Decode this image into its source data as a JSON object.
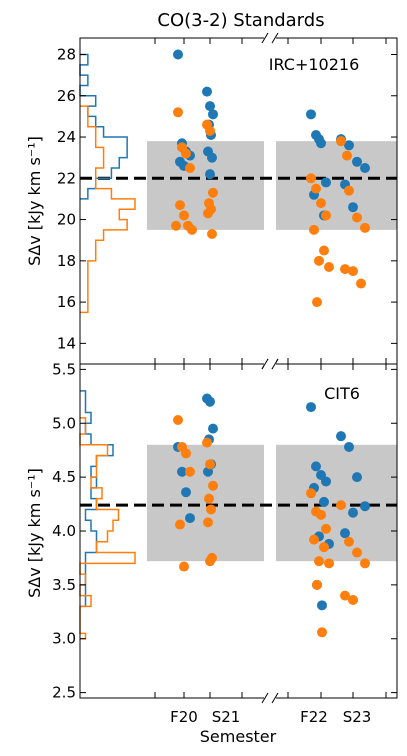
{
  "figure": {
    "title": "CO(3-2) Standards",
    "xlabel": "Semester",
    "xtick_labels": [
      "F20",
      "S21",
      "F22",
      "S23"
    ]
  },
  "chart_data": [
    {
      "type": "scatter",
      "annotation": "IRC+10216",
      "ylabel": "SΔv [kJy km s⁻¹]",
      "ylim": [
        13,
        28.8
      ],
      "yticks": [
        14,
        16,
        18,
        20,
        22,
        24,
        26,
        28
      ],
      "ytick_labels": [
        "14",
        "16",
        "18",
        "20",
        "22",
        "24",
        "26",
        "28"
      ],
      "mean": 22.0,
      "band": [
        19.5,
        23.8
      ],
      "series": [
        {
          "color": "#1f77b4",
          "points": [
            {
              "x": "F20",
              "y": 28.0
            },
            {
              "x": "F20",
              "y": 23.7
            },
            {
              "x": "F20",
              "y": 23.3
            },
            {
              "x": "F20",
              "y": 23.1
            },
            {
              "x": "F20",
              "y": 22.8
            },
            {
              "x": "F20",
              "y": 22.6
            },
            {
              "x": "S21",
              "y": 26.2
            },
            {
              "x": "S21",
              "y": 25.5
            },
            {
              "x": "S21",
              "y": 25.1
            },
            {
              "x": "S21",
              "y": 24.6
            },
            {
              "x": "S21",
              "y": 24.1
            },
            {
              "x": "S21",
              "y": 23.3
            },
            {
              "x": "S21",
              "y": 23.0
            },
            {
              "x": "S21",
              "y": 22.2
            },
            {
              "x": "F22",
              "y": 25.1
            },
            {
              "x": "F22",
              "y": 24.1
            },
            {
              "x": "F22",
              "y": 23.7
            },
            {
              "x": "F22",
              "y": 21.8
            },
            {
              "x": "F22",
              "y": 21.2
            },
            {
              "x": "F22",
              "y": 20.2
            },
            {
              "x": "F22",
              "y": 23.9
            },
            {
              "x": "S23",
              "y": 23.9
            },
            {
              "x": "S23",
              "y": 23.6
            },
            {
              "x": "S23",
              "y": 22.8
            },
            {
              "x": "S23",
              "y": 22.5
            },
            {
              "x": "S23",
              "y": 21.7
            },
            {
              "x": "S23",
              "y": 20.6
            }
          ]
        },
        {
          "color": "#ff7f0e",
          "points": [
            {
              "x": "F20",
              "y": 25.2
            },
            {
              "x": "F20",
              "y": 23.5
            },
            {
              "x": "F20",
              "y": 23.2
            },
            {
              "x": "F20",
              "y": 22.5
            },
            {
              "x": "F20",
              "y": 20.7
            },
            {
              "x": "F20",
              "y": 20.2
            },
            {
              "x": "F20",
              "y": 19.7
            },
            {
              "x": "F20",
              "y": 19.7
            },
            {
              "x": "F20",
              "y": 19.5
            },
            {
              "x": "S21",
              "y": 24.6
            },
            {
              "x": "S21",
              "y": 24.3
            },
            {
              "x": "S21",
              "y": 21.3
            },
            {
              "x": "S21",
              "y": 20.8
            },
            {
              "x": "S21",
              "y": 20.5
            },
            {
              "x": "S21",
              "y": 20.3
            },
            {
              "x": "S21",
              "y": 19.3
            },
            {
              "x": "F22",
              "y": 22.0
            },
            {
              "x": "F22",
              "y": 21.5
            },
            {
              "x": "F22",
              "y": 20.8
            },
            {
              "x": "F22",
              "y": 20.2
            },
            {
              "x": "F22",
              "y": 19.5
            },
            {
              "x": "F22",
              "y": 18.5
            },
            {
              "x": "F22",
              "y": 18.0
            },
            {
              "x": "F22",
              "y": 17.7
            },
            {
              "x": "F22",
              "y": 16.0
            },
            {
              "x": "S23",
              "y": 23.8
            },
            {
              "x": "S23",
              "y": 21.4
            },
            {
              "x": "S23",
              "y": 20.1
            },
            {
              "x": "S23",
              "y": 19.6
            },
            {
              "x": "S23",
              "y": 17.6
            },
            {
              "x": "S23",
              "y": 17.5
            },
            {
              "x": "S23",
              "y": 16.9
            },
            {
              "x": "S23",
              "y": 23.1
            }
          ]
        }
      ]
    },
    {
      "type": "scatter",
      "annotation": "CIT6",
      "ylabel": "SΔv [kJy km s⁻¹]",
      "ylim": [
        2.45,
        5.55
      ],
      "yticks": [
        2.5,
        3.0,
        3.5,
        4.0,
        4.5,
        5.0,
        5.5
      ],
      "ytick_labels": [
        "2.5",
        "3.0",
        "3.5",
        "4.0",
        "4.5",
        "5.0",
        "5.5"
      ],
      "mean": 4.24,
      "band": [
        3.72,
        4.8
      ],
      "series": [
        {
          "color": "#1f77b4",
          "points": [
            {
              "x": "F20",
              "y": 4.78
            },
            {
              "x": "F20",
              "y": 4.55
            },
            {
              "x": "F20",
              "y": 4.36
            },
            {
              "x": "F20",
              "y": 4.12
            },
            {
              "x": "S21",
              "y": 5.23
            },
            {
              "x": "S21",
              "y": 5.2
            },
            {
              "x": "S21",
              "y": 4.95
            },
            {
              "x": "S21",
              "y": 4.85
            },
            {
              "x": "S21",
              "y": 4.62
            },
            {
              "x": "S21",
              "y": 4.55
            },
            {
              "x": "F22",
              "y": 5.15
            },
            {
              "x": "F22",
              "y": 4.6
            },
            {
              "x": "F22",
              "y": 4.52
            },
            {
              "x": "F22",
              "y": 4.46
            },
            {
              "x": "F22",
              "y": 4.4
            },
            {
              "x": "F22",
              "y": 4.27
            },
            {
              "x": "F22",
              "y": 3.95
            },
            {
              "x": "F22",
              "y": 3.88
            },
            {
              "x": "F22",
              "y": 3.5
            },
            {
              "x": "F22",
              "y": 3.31
            },
            {
              "x": "S23",
              "y": 4.88
            },
            {
              "x": "S23",
              "y": 4.78
            },
            {
              "x": "S23",
              "y": 4.5
            },
            {
              "x": "S23",
              "y": 4.23
            },
            {
              "x": "S23",
              "y": 3.98
            },
            {
              "x": "S23",
              "y": 4.17
            }
          ]
        },
        {
          "color": "#ff7f0e",
          "points": [
            {
              "x": "F20",
              "y": 5.03
            },
            {
              "x": "F20",
              "y": 4.78
            },
            {
              "x": "F20",
              "y": 4.72
            },
            {
              "x": "F20",
              "y": 4.55
            },
            {
              "x": "F20",
              "y": 4.06
            },
            {
              "x": "F20",
              "y": 3.67
            },
            {
              "x": "S21",
              "y": 4.82
            },
            {
              "x": "S21",
              "y": 4.62
            },
            {
              "x": "S21",
              "y": 4.42
            },
            {
              "x": "S21",
              "y": 4.3
            },
            {
              "x": "S21",
              "y": 4.2
            },
            {
              "x": "S21",
              "y": 4.08
            },
            {
              "x": "S21",
              "y": 3.75
            },
            {
              "x": "S21",
              "y": 3.72
            },
            {
              "x": "F22",
              "y": 4.35
            },
            {
              "x": "F22",
              "y": 4.18
            },
            {
              "x": "F22",
              "y": 4.15
            },
            {
              "x": "F22",
              "y": 4.02
            },
            {
              "x": "F22",
              "y": 3.92
            },
            {
              "x": "F22",
              "y": 3.85
            },
            {
              "x": "F22",
              "y": 3.72
            },
            {
              "x": "F22",
              "y": 3.7
            },
            {
              "x": "F22",
              "y": 3.5
            },
            {
              "x": "F22",
              "y": 3.06
            },
            {
              "x": "S23",
              "y": 4.24
            },
            {
              "x": "S23",
              "y": 3.9
            },
            {
              "x": "S23",
              "y": 3.8
            },
            {
              "x": "S23",
              "y": 3.7
            },
            {
              "x": "S23",
              "y": 3.4
            },
            {
              "x": "S23",
              "y": 3.36
            }
          ]
        }
      ]
    }
  ],
  "histograms": [
    {
      "panel": 0,
      "series": [
        {
          "color": "#1f77b4",
          "edges": [
            21.0,
            21.5,
            22.0,
            22.5,
            23.0,
            23.5,
            24.0,
            24.5,
            25.0,
            25.5,
            26.0,
            26.5,
            27.0,
            27.5,
            28.0
          ],
          "counts": [
            1,
            2,
            4,
            5,
            6,
            6,
            3,
            2,
            1,
            2,
            0,
            1,
            0,
            1
          ]
        },
        {
          "color": "#ff7f0e",
          "edges": [
            15.5,
            16.0,
            16.5,
            17.0,
            17.5,
            18.0,
            18.5,
            19.0,
            19.5,
            20.0,
            20.5,
            21.0,
            21.5,
            22.0,
            22.5,
            23.0,
            23.5,
            24.0,
            24.5,
            25.0,
            25.5
          ],
          "counts": [
            1,
            1,
            1,
            1,
            1,
            2,
            2,
            3,
            6,
            5,
            7,
            4,
            2,
            2,
            3,
            3,
            2,
            2,
            1,
            1
          ]
        }
      ]
    },
    {
      "panel": 1,
      "series": [
        {
          "color": "#1f77b4",
          "edges": [
            3.3,
            3.4,
            3.5,
            3.6,
            3.7,
            3.8,
            3.9,
            4.0,
            4.1,
            4.2,
            4.3,
            4.4,
            4.5,
            4.6,
            4.7,
            4.8,
            4.9,
            5.0,
            5.1,
            5.2,
            5.3
          ],
          "counts": [
            1,
            1,
            1,
            1,
            1,
            3,
            3,
            2,
            1,
            3,
            2,
            3,
            2,
            3,
            6,
            2,
            1,
            2,
            1,
            1
          ]
        },
        {
          "color": "#ff7f0e",
          "edges": [
            3.0,
            3.05,
            3.3,
            3.4,
            3.5,
            3.6,
            3.7,
            3.8,
            3.9,
            4.0,
            4.1,
            4.2,
            4.3,
            4.4,
            4.5,
            4.6,
            4.7,
            4.8,
            4.9,
            5.0,
            5.05
          ],
          "counts": [
            1,
            0,
            2,
            0,
            1,
            0,
            10,
            3,
            5,
            6,
            7,
            3,
            4,
            2,
            3,
            3,
            5,
            0,
            1,
            1
          ]
        }
      ]
    }
  ]
}
